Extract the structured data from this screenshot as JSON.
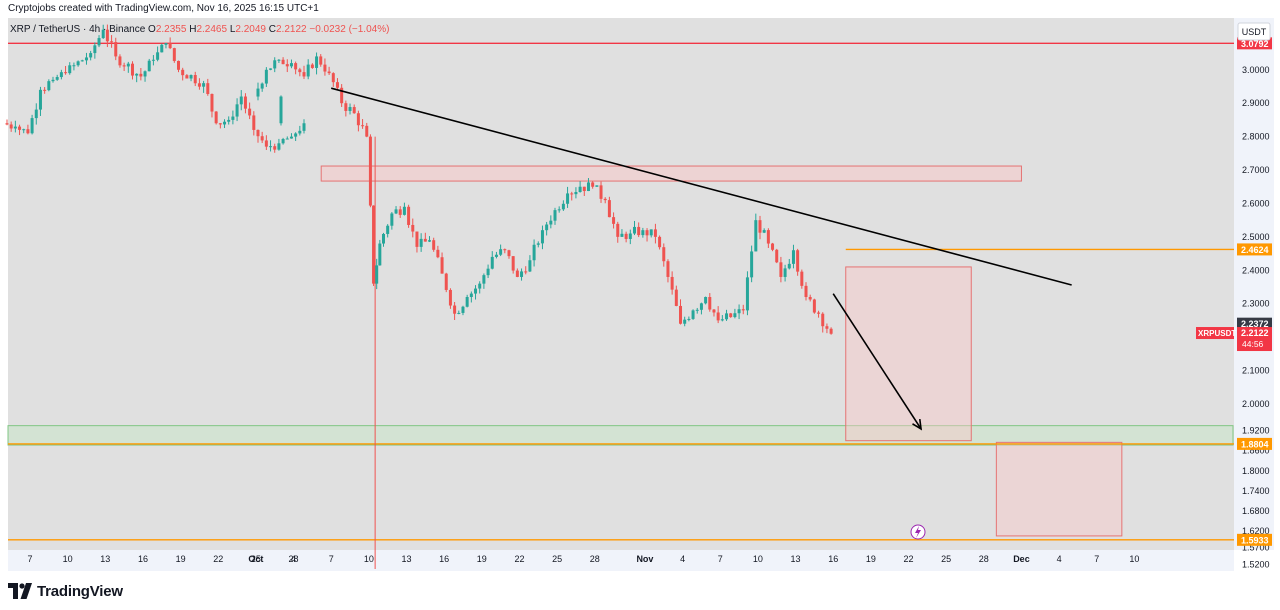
{
  "header": {
    "created_by": "Cryptojobs created with TradingView.com, Nov 16, 2025 16:15 UTC+1"
  },
  "legend": {
    "symbol": "XRP / TetherUS · 4h · Binance",
    "o_label": "O",
    "o_value": "2.2355",
    "h_label": "H",
    "h_value": "2.2465",
    "l_label": "L",
    "l_value": "2.2049",
    "c_label": "C",
    "c_value": "2.2122",
    "change": "−0.0232 (−1.04%)"
  },
  "currency_button": "USDT",
  "colors": {
    "background": "#e0e0e0",
    "up": "#26a69a",
    "down": "#ef5350",
    "red_line": "#f23645",
    "orange_line": "#ff9800",
    "trendline": "#000000",
    "zone_fill": "#f8c8c8",
    "green_zone": "#c8e6c9"
  },
  "footer": {
    "brand": "TradingView"
  },
  "chart_data": {
    "type": "candlestick",
    "timeframe": "4h",
    "ylim": [
      1.5,
      3.155
    ],
    "y_ticks": [
      "3.0000",
      "2.9000",
      "2.8000",
      "2.7000",
      "2.6000",
      "2.5000",
      "2.4000",
      "2.3000",
      "2.2000",
      "2.1000",
      "2.0000",
      "1.9200",
      "1.8600",
      "1.8000",
      "1.7400",
      "1.6800",
      "1.6200",
      "1.5700",
      "1.5200"
    ],
    "x_ticks": [
      "7",
      "10",
      "13",
      "16",
      "19",
      "22",
      "25",
      "28",
      "Oct",
      "4",
      "7",
      "10",
      "13",
      "16",
      "19",
      "22",
      "25",
      "28",
      "Nov",
      "4",
      "7",
      "10",
      "13",
      "16",
      "19",
      "22",
      "25",
      "28",
      "Dec",
      "4",
      "7",
      "10"
    ],
    "x_tick_dates": [
      "Sep 7",
      "Sep 10",
      "Sep 13",
      "Sep 16",
      "Sep 19",
      "Sep 22",
      "Sep 25",
      "Sep 28",
      "Oct 1",
      "Oct 4",
      "Oct 7",
      "Oct 10",
      "Oct 13",
      "Oct 16",
      "Oct 19",
      "Oct 22",
      "Oct 25",
      "Oct 28",
      "Nov 1",
      "Nov 4",
      "Nov 7",
      "Nov 10",
      "Nov 13",
      "Nov 16",
      "Nov 19",
      "Nov 22",
      "Nov 25",
      "Nov 28",
      "Dec 1",
      "Dec 4",
      "Dec 7",
      "Dec 10"
    ],
    "price_path": [
      [
        "Sep 5",
        2.84
      ],
      [
        "Sep 6",
        2.83
      ],
      [
        "Sep 7",
        2.81
      ],
      [
        "Sep 8",
        2.94
      ],
      [
        "Sep 9",
        2.97
      ],
      [
        "Sep 10",
        2.99
      ],
      [
        "Sep 12",
        3.05
      ],
      [
        "Sep 13",
        3.12
      ],
      [
        "Sep 14",
        3.04
      ],
      [
        "Sep 16",
        2.98
      ],
      [
        "Sep 17",
        3.03
      ],
      [
        "Sep 18",
        3.08
      ],
      [
        "Sep 19",
        3.0
      ],
      [
        "Sep 21",
        2.96
      ],
      [
        "Sep 22",
        2.84
      ],
      [
        "Sep 23",
        2.85
      ],
      [
        "Sep 24",
        2.92
      ],
      [
        "Sep 25",
        2.82
      ],
      [
        "Sep 26",
        2.77
      ],
      [
        "Sep 27",
        2.78
      ],
      [
        "Sep 28",
        2.8
      ],
      [
        "Sep 29",
        2.84
      ],
      [
        "Oct 1",
        2.92
      ],
      [
        "Oct 2",
        3.0
      ],
      [
        "Oct 3",
        3.03
      ],
      [
        "Oct 4",
        3.02
      ],
      [
        "Oct 5",
        2.98
      ],
      [
        "Oct 6",
        3.04
      ],
      [
        "Oct 7",
        2.99
      ],
      [
        "Oct 8",
        2.9
      ],
      [
        "Oct 9",
        2.87
      ],
      [
        "Oct 10",
        2.8
      ],
      [
        "Oct 10.5",
        2.36
      ],
      [
        "Oct 11",
        2.48
      ],
      [
        "Oct 12",
        2.57
      ],
      [
        "Oct 13",
        2.59
      ],
      [
        "Oct 14",
        2.47
      ],
      [
        "Oct 15",
        2.49
      ],
      [
        "Oct 16",
        2.39
      ],
      [
        "Oct 17",
        2.27
      ],
      [
        "Oct 18",
        2.32
      ],
      [
        "Oct 19",
        2.36
      ],
      [
        "Oct 20",
        2.44
      ],
      [
        "Oct 21",
        2.46
      ],
      [
        "Oct 22",
        2.38
      ],
      [
        "Oct 23",
        2.43
      ],
      [
        "Oct 24",
        2.52
      ],
      [
        "Oct 25",
        2.58
      ],
      [
        "Oct 26",
        2.63
      ],
      [
        "Oct 27",
        2.65
      ],
      [
        "Oct 28",
        2.65
      ],
      [
        "Oct 29",
        2.61
      ],
      [
        "Oct 30",
        2.5
      ],
      [
        "Oct 31",
        2.51
      ],
      [
        "Nov 1",
        2.52
      ],
      [
        "Nov 2",
        2.5
      ],
      [
        "Nov 3",
        2.38
      ],
      [
        "Nov 4",
        2.24
      ],
      [
        "Nov 5",
        2.28
      ],
      [
        "Nov 6",
        2.32
      ],
      [
        "Nov 7",
        2.25
      ],
      [
        "Nov 8",
        2.26
      ],
      [
        "Nov 9",
        2.28
      ],
      [
        "Nov 10",
        2.55
      ],
      [
        "Nov 11",
        2.48
      ],
      [
        "Nov 12",
        2.38
      ],
      [
        "Nov 13",
        2.46
      ],
      [
        "Nov 14",
        2.32
      ],
      [
        "Nov 15",
        2.27
      ],
      [
        "Nov 16",
        2.21
      ]
    ],
    "levels": [
      {
        "label": "3.0792",
        "price": 3.0792,
        "color": "#f23645"
      },
      {
        "label": "2.4624",
        "price": 2.4624,
        "color": "#ff9800"
      },
      {
        "label": "1.8804",
        "price": 1.8804,
        "color": "#ff9800"
      },
      {
        "label": "1.5933",
        "price": 1.5933,
        "color": "#ff9800"
      }
    ],
    "price_tags": [
      {
        "label": "2.2372",
        "price": 2.2372,
        "color": "#363a45"
      },
      {
        "label": "XRPUSDT",
        "price": 2.2122,
        "color": "#f23645"
      },
      {
        "label": "2.2122",
        "price": 2.2122,
        "color": "#f23645"
      },
      {
        "label": "44:56",
        "price": 2.2122,
        "color": "#f23645"
      }
    ],
    "trendline": {
      "from": [
        "Oct 7",
        2.945
      ],
      "to": [
        "Dec 5",
        2.356
      ]
    },
    "resistance_zone": {
      "from": "Oct 7",
      "to": "Dec 1",
      "top": 2.712,
      "bottom": 2.667
    },
    "support_zone": {
      "top": 1.935,
      "bottom": 1.877
    },
    "projection_boxes": [
      {
        "from": "Nov 17",
        "to": "Nov 27",
        "top": 2.41,
        "bottom": 1.89
      },
      {
        "from": "Nov 29",
        "to": "Dec 9",
        "top": 1.885,
        "bottom": 1.605
      }
    ],
    "projection_arrow": {
      "from": [
        "Nov 16",
        2.33
      ],
      "to": [
        "Nov 23",
        1.925
      ]
    }
  }
}
